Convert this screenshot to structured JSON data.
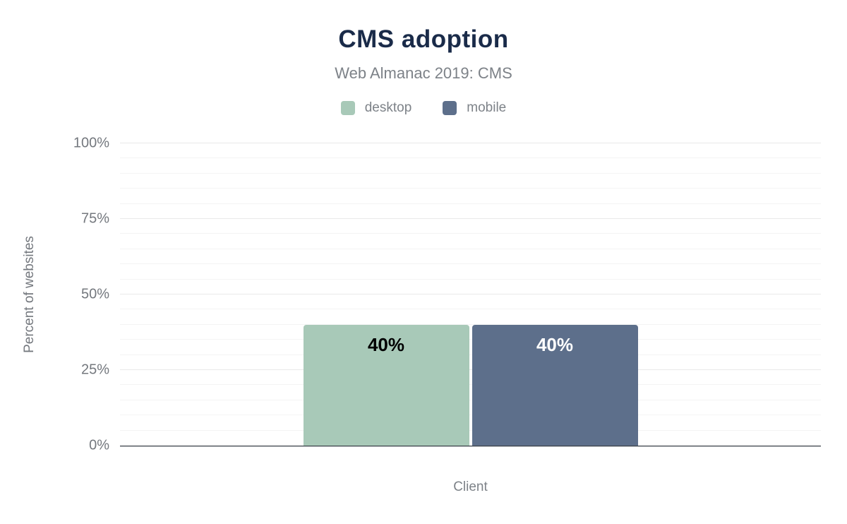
{
  "figure": {
    "title": "CMS adoption",
    "subtitle": "Web Almanac 2019: CMS",
    "xlabel": "Client",
    "ylabel": "Percent of websites"
  },
  "colors": {
    "title_text": "#1a2b49",
    "muted_text": "#7d8288",
    "tick_text": "#74787e",
    "axis_line": "#3a3f45",
    "gridline_minor": "#f4f4f4",
    "gridline_major": "#e9e9e9"
  },
  "chart_data": {
    "type": "bar",
    "title": "CMS adoption",
    "subtitle": "Web Almanac 2019: CMS",
    "xlabel": "Client",
    "ylabel": "Percent of websites",
    "categories": [
      "Client"
    ],
    "series": [
      {
        "name": "desktop",
        "values": [
          40
        ],
        "color": "#a8c9b8",
        "label_color": "#000000"
      },
      {
        "name": "mobile",
        "values": [
          40
        ],
        "color": "#5d6f8b",
        "label_color": "#ffffff"
      }
    ],
    "value_labels": [
      "40%",
      "40%"
    ],
    "value_suffix": "%",
    "ylim": [
      0,
      100
    ],
    "yticks": [
      0,
      25,
      50,
      75,
      100
    ],
    "ytick_labels": [
      "0%",
      "25%",
      "50%",
      "75%",
      "100%"
    ],
    "minor_grid_step": 5,
    "grid": true,
    "legend_position": "top"
  }
}
